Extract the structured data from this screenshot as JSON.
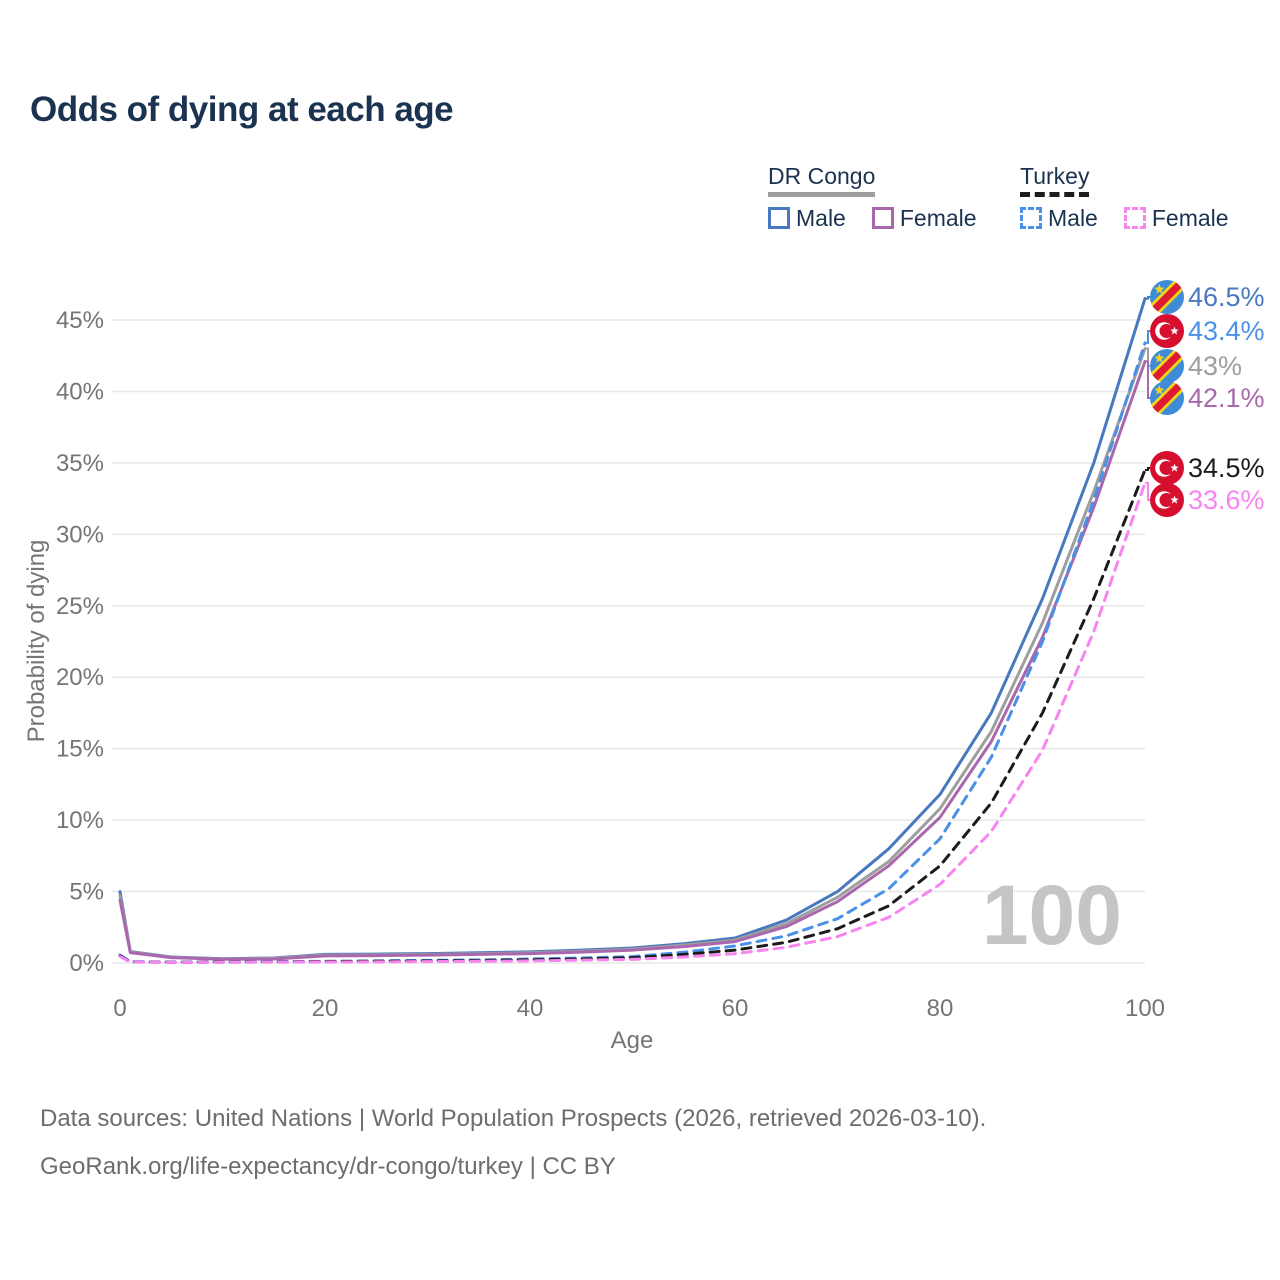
{
  "title": "Odds of dying at each age",
  "legend": {
    "groups": [
      {
        "title": "DR Congo",
        "line_style": "solid",
        "combined_series": "cd_total",
        "items": [
          {
            "label": "Male",
            "series": "cd_male"
          },
          {
            "label": "Female",
            "series": "cd_female"
          }
        ]
      },
      {
        "title": "Turkey",
        "line_style": "dashed",
        "combined_series": "tr_total",
        "items": [
          {
            "label": "Male",
            "series": "tr_male"
          },
          {
            "label": "Female",
            "series": "tr_female"
          }
        ]
      }
    ]
  },
  "footer": {
    "line1": "Data sources: United Nations | World Population Prospects (2026, retrieved 2026-03-10).",
    "line2": "GeoRank.org/life-expectancy/dr-congo/turkey | CC BY"
  },
  "chart_data": {
    "type": "line",
    "title": "Odds of dying at each age",
    "xlabel": "Age",
    "ylabel": "Probability of dying",
    "x_ticks": [
      "0",
      "20",
      "40",
      "60",
      "80",
      "100"
    ],
    "y_ticks": [
      "0%",
      "5%",
      "10%",
      "15%",
      "20%",
      "25%",
      "30%",
      "35%",
      "40%",
      "45%"
    ],
    "xlim": [
      0,
      100
    ],
    "ylim": [
      0,
      47
    ],
    "grid": "horizontal",
    "legend_position": "top-right",
    "watermark": "100",
    "ages": [
      0,
      1,
      5,
      10,
      15,
      20,
      25,
      30,
      35,
      40,
      45,
      50,
      55,
      60,
      65,
      70,
      75,
      80,
      85,
      90,
      95,
      100
    ],
    "series": [
      {
        "id": "cd_male",
        "name": "DR Congo Male",
        "color": "#4878bf",
        "dashed": false,
        "values": [
          5.0,
          0.8,
          0.42,
          0.3,
          0.35,
          0.6,
          0.62,
          0.66,
          0.72,
          0.78,
          0.9,
          1.05,
          1.35,
          1.75,
          3.0,
          5.0,
          8.0,
          11.8,
          17.5,
          25.5,
          35.0,
          46.5
        ]
      },
      {
        "id": "cd_total",
        "name": "DR Congo Both sexes",
        "color": "#9e9e9e",
        "dashed": false,
        "values": [
          4.7,
          0.77,
          0.4,
          0.28,
          0.32,
          0.55,
          0.57,
          0.6,
          0.65,
          0.72,
          0.82,
          0.97,
          1.25,
          1.6,
          2.75,
          4.6,
          7.1,
          10.8,
          16.2,
          23.8,
          33.0,
          43.0
        ]
      },
      {
        "id": "cd_female",
        "name": "DR Congo Female",
        "color": "#a968ad",
        "dashed": false,
        "values": [
          4.4,
          0.73,
          0.38,
          0.26,
          0.28,
          0.5,
          0.52,
          0.55,
          0.6,
          0.66,
          0.76,
          0.9,
          1.15,
          1.5,
          2.55,
          4.3,
          6.8,
          10.2,
          15.5,
          22.8,
          31.9,
          42.1
        ]
      },
      {
        "id": "tr_male",
        "name": "Turkey Male",
        "color": "#4a90e8",
        "dashed": true,
        "values": [
          0.55,
          0.1,
          0.06,
          0.07,
          0.1,
          0.12,
          0.15,
          0.18,
          0.22,
          0.28,
          0.35,
          0.45,
          0.75,
          1.2,
          1.9,
          3.1,
          5.2,
          8.7,
          14.4,
          22.5,
          32.4,
          43.4
        ]
      },
      {
        "id": "tr_total",
        "name": "Turkey Both sexes",
        "color": "#1c1c1c",
        "dashed": true,
        "values": [
          0.5,
          0.08,
          0.05,
          0.06,
          0.08,
          0.1,
          0.12,
          0.14,
          0.17,
          0.22,
          0.28,
          0.37,
          0.6,
          0.9,
          1.45,
          2.4,
          4.0,
          6.8,
          11.2,
          17.5,
          25.5,
          34.5
        ]
      },
      {
        "id": "tr_female",
        "name": "Turkey Female",
        "color": "#f884f0",
        "dashed": true,
        "values": [
          0.45,
          0.07,
          0.04,
          0.05,
          0.06,
          0.07,
          0.08,
          0.1,
          0.12,
          0.15,
          0.2,
          0.25,
          0.42,
          0.65,
          1.1,
          1.85,
          3.2,
          5.5,
          9.2,
          14.9,
          23.2,
          33.6
        ]
      }
    ],
    "end_labels": [
      {
        "text": "46.5%",
        "series": "cd_male",
        "flag": "drcongo",
        "color": "#4878bf"
      },
      {
        "text": "43.4%",
        "series": "tr_male",
        "flag": "turkey",
        "color": "#4a90e8"
      },
      {
        "text": "43%",
        "series": "cd_total",
        "flag": "drcongo",
        "color": "#9e9e9e"
      },
      {
        "text": "42.1%",
        "series": "cd_female",
        "flag": "drcongo",
        "color": "#a968ad"
      },
      {
        "text": "34.5%",
        "series": "tr_total",
        "flag": "turkey",
        "color": "#1c1c1c"
      },
      {
        "text": "33.6%",
        "series": "tr_female",
        "flag": "turkey",
        "color": "#f884f0"
      }
    ],
    "flag_colors": {
      "drcongo": {
        "field": "#3f8bd8",
        "stripe": "#dd1c33",
        "border": "#f5d616"
      },
      "turkey": {
        "field": "#d60f2e",
        "crescent": "#ffffff"
      }
    },
    "style": {
      "grid_color": "#e7e7e7",
      "axis_text_color": "#757575",
      "watermark_color": "#c5c5c5",
      "title_color": "#1b3350",
      "footer_color": "#6d6d6d"
    }
  }
}
